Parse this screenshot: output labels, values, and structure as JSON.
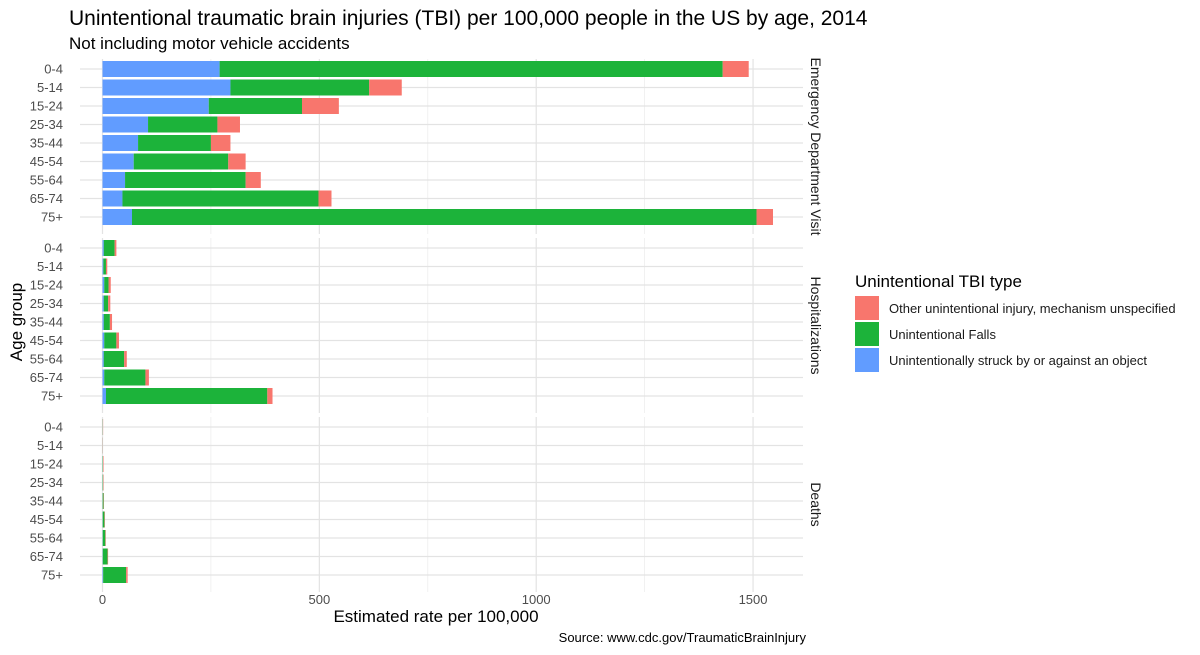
{
  "chart_data": {
    "type": "bar",
    "orientation": "horizontal",
    "stacked": true,
    "title": "Unintentional traumatic brain injuries (TBI) per 100,000 people in the US by age, 2014",
    "subtitle": "Not including motor vehicle accidents",
    "xlabel": "Estimated rate per 100,000",
    "ylabel": "Age group",
    "caption": "Source: www.cdc.gov/TraumaticBrainInjury",
    "xlim": [
      0,
      1550
    ],
    "x_ticks": [
      0,
      500,
      1000,
      1500
    ],
    "grid": true,
    "legend": {
      "title": "Unintentional TBI type",
      "position": "right",
      "entries": [
        {
          "label": "Other unintentional injury, mechanism unspecified",
          "color": "#F8766D"
        },
        {
          "label": "Unintentional Falls",
          "color": "#1CB33A"
        },
        {
          "label": "Unintentionally struck by or against an object",
          "color": "#619CFF"
        }
      ]
    },
    "categories": [
      "0-4",
      "5-14",
      "15-24",
      "25-34",
      "35-44",
      "45-54",
      "55-64",
      "65-74",
      "75+"
    ],
    "series_order": [
      "Unintentionally struck by or against an object",
      "Unintentional Falls",
      "Other unintentional injury, mechanism unspecified"
    ],
    "panels": [
      {
        "label": "Emergency Department Visit",
        "series": [
          {
            "name": "Unintentionally struck by or against an object",
            "values": [
              270,
              295,
              245,
              105,
              82,
              72,
              52,
              46,
              68
            ]
          },
          {
            "name": "Unintentional Falls",
            "values": [
              1160,
              320,
              215,
              160,
              168,
              218,
              278,
              452,
              1440
            ]
          },
          {
            "name": "Other unintentional injury, mechanism unspecified",
            "values": [
              60,
              75,
              85,
              52,
              45,
              40,
              35,
              30,
              38
            ]
          }
        ]
      },
      {
        "label": "Hospitalizations",
        "series": [
          {
            "name": "Unintentionally struck by or against an object",
            "values": [
              3,
              2,
              4,
              3,
              3,
              4,
              3,
              4,
              8
            ]
          },
          {
            "name": "Unintentional Falls",
            "values": [
              25,
              6,
              10,
              10,
              14,
              28,
              47,
              95,
              372
            ]
          },
          {
            "name": "Other unintentional injury, mechanism unspecified",
            "values": [
              4,
              3,
              5,
              5,
              5,
              6,
              6,
              8,
              12
            ]
          }
        ]
      },
      {
        "label": "Deaths",
        "series": [
          {
            "name": "Unintentionally struck by or against an object",
            "values": [
              0.3,
              0.2,
              0.4,
              0.4,
              0.4,
              0.5,
              0.6,
              0.7,
              1.5
            ]
          },
          {
            "name": "Unintentional Falls",
            "values": [
              0.5,
              0.3,
              0.8,
              1.2,
              2.0,
              4.0,
              6.0,
              11,
              53
            ]
          },
          {
            "name": "Other unintentional injury, mechanism unspecified",
            "values": [
              0.6,
              0.4,
              1.2,
              1.0,
              0.8,
              1.0,
              1.0,
              1.2,
              3.5
            ]
          }
        ]
      }
    ]
  }
}
